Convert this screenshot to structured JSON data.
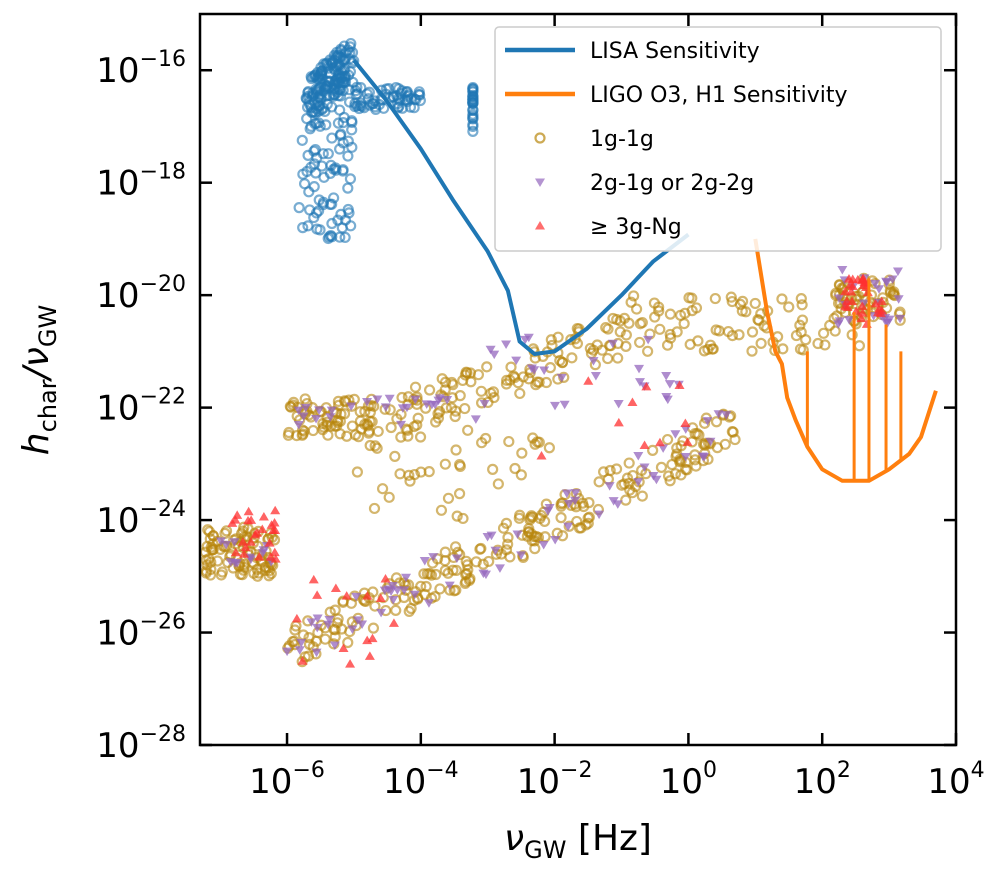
{
  "chart_data": {
    "type": "scatter",
    "log_x": true,
    "log_y": true,
    "xlim": [
      5e-08,
      10000
    ],
    "ylim": [
      1e-28,
      1e-15
    ],
    "x_tick_labels": [
      {
        "value": 1e-06,
        "base": "10",
        "exp": "−6"
      },
      {
        "value": 0.0001,
        "base": "10",
        "exp": "−4"
      },
      {
        "value": 0.01,
        "base": "10",
        "exp": "−2"
      },
      {
        "value": 1,
        "base": "10",
        "exp": "0"
      },
      {
        "value": 100,
        "base": "10",
        "exp": "2"
      },
      {
        "value": 10000,
        "base": "10",
        "exp": "4"
      }
    ],
    "y_tick_labels": [
      {
        "value": 1e-16,
        "base": "10",
        "exp": "−16"
      },
      {
        "value": 1e-18,
        "base": "10",
        "exp": "−18"
      },
      {
        "value": 1e-20,
        "base": "10",
        "exp": "−20"
      },
      {
        "value": 1e-22,
        "base": "10",
        "exp": "−22"
      },
      {
        "value": 1e-24,
        "base": "10",
        "exp": "−24"
      },
      {
        "value": 1e-26,
        "base": "10",
        "exp": "−26"
      },
      {
        "value": 1e-28,
        "base": "10",
        "exp": "−28"
      }
    ],
    "xlabel": {
      "main": "ν",
      "sub": "GW",
      "rest": " [Hz]"
    },
    "ylabel": {
      "main": "h",
      "sub1": "char",
      "mid": "/ν",
      "sub2": "GW"
    },
    "grid": false,
    "legend_position": "top-right",
    "legend": [
      {
        "label": "LISA Sensitivity",
        "kind": "line",
        "color": "#1f77b4"
      },
      {
        "label": "LIGO O3, H1 Sensitivity",
        "kind": "line",
        "color": "#ff7f0e"
      },
      {
        "label": "1g-1g",
        "kind": "circle",
        "color": "#b8860b"
      },
      {
        "label": "2g-1g or 2g-2g",
        "kind": "triangle-down",
        "color": "#9467bd"
      },
      {
        "label": "≥ 3g-Ng",
        "kind": "triangle-up",
        "color": "#ff3030"
      }
    ],
    "lines": [
      {
        "name": "LISA Sensitivity",
        "color": "#1f77b4",
        "x": [
          1e-05,
          3e-05,
          0.0001,
          0.0003,
          0.001,
          0.002,
          0.003,
          0.005,
          0.01,
          0.03,
          0.1,
          0.3,
          1
        ],
        "y": [
          1.5e-16,
          3e-17,
          4e-18,
          5e-19,
          6e-20,
          1.2e-20,
          1.5e-21,
          9e-22,
          1e-21,
          2.5e-21,
          1e-20,
          4e-20,
          1.2e-19
        ]
      },
      {
        "name": "LIGO O3, H1 Sensitivity",
        "color": "#ff7f0e",
        "x": [
          10,
          15,
          20,
          25,
          30,
          40,
          60,
          100,
          200,
          500,
          1000,
          2000,
          3000,
          5000
        ],
        "y": [
          1e-19,
          5e-21,
          1e-21,
          6e-22,
          1.5e-22,
          6e-23,
          2e-23,
          8e-24,
          5e-24,
          5e-24,
          8e-24,
          1.5e-23,
          3e-23,
          2e-22
        ],
        "spikes": [
          {
            "x": 60,
            "y_top": 1e-21
          },
          {
            "x": 300,
            "y_top": 5e-21
          },
          {
            "x": 500,
            "y_top": 2e-20
          },
          {
            "x": 900,
            "y_top": 3e-21
          },
          {
            "x": 1500,
            "y_top": 1e-21
          }
        ]
      }
    ],
    "scatter": [
      {
        "name": "LISA-band points",
        "color": "#1f77b4",
        "marker": "circle",
        "alpha": 0.6,
        "clusters": [
          {
            "x": [
              2e-06,
              1e-05
            ],
            "y": [
              3e-17,
              1.5e-16
            ],
            "n": 140,
            "mode": "diag"
          },
          {
            "x": [
              1e-05,
              0.0001
            ],
            "y": [
              2e-17,
              5e-17
            ],
            "n": 60,
            "mode": "box"
          },
          {
            "x": [
              1.5e-06,
              1e-05
            ],
            "y": [
              3e-18,
              5e-17
            ],
            "n": 40,
            "mode": "box"
          },
          {
            "x": [
              1.5e-06,
              1e-05
            ],
            "y": [
              1e-19,
              3e-18
            ],
            "n": 50,
            "mode": "box"
          },
          {
            "x": [
              0.0006,
              0.0006
            ],
            "y": [
              8e-18,
              5e-17
            ],
            "n": 25,
            "mode": "box"
          }
        ]
      },
      {
        "name": "1g-1g",
        "color": "#b8860b",
        "marker": "circle",
        "alpha": 0.6,
        "clusters": [
          {
            "x": [
              6e-08,
              7e-07
            ],
            "y": [
              1e-25,
              8e-25
            ],
            "n": 90,
            "mode": "box"
          },
          {
            "x": [
              1e-06,
              2e-05
            ],
            "y": [
              3e-23,
              1.5e-22
            ],
            "n": 70,
            "mode": "box"
          },
          {
            "x": [
              1e-06,
              0.01
            ],
            "y": [
              5e-27,
              1e-24
            ],
            "n": 140,
            "mode": "diag"
          },
          {
            "x": [
              0.01,
              5
            ],
            "y": [
              1e-24,
              5e-23
            ],
            "n": 90,
            "mode": "diag"
          },
          {
            "x": [
              2e-05,
              0.1
            ],
            "y": [
              5e-23,
              2e-21
            ],
            "n": 110,
            "mode": "diag"
          },
          {
            "x": [
              0.1,
              500
            ],
            "y": [
              1e-21,
              1e-20
            ],
            "n": 90,
            "mode": "box"
          },
          {
            "x": [
              1e-05,
              0.01
            ],
            "y": [
              1e-24,
              5e-23
            ],
            "n": 40,
            "mode": "box"
          },
          {
            "x": [
              150,
              1500
            ],
            "y": [
              3e-21,
              2e-20
            ],
            "n": 50,
            "mode": "box"
          }
        ]
      },
      {
        "name": "2g-1g or 2g-2g",
        "color": "#9467bd",
        "marker": "triangle-down",
        "alpha": 0.75,
        "clusters": [
          {
            "x": [
              1e-07,
              7e-07
            ],
            "y": [
              1.5e-25,
              8e-25
            ],
            "n": 12,
            "mode": "box"
          },
          {
            "x": [
              1e-06,
              0.01
            ],
            "y": [
              5e-27,
              1e-24
            ],
            "n": 40,
            "mode": "diag"
          },
          {
            "x": [
              1e-06,
              0.001
            ],
            "y": [
              5e-23,
              1.5e-22
            ],
            "n": 25,
            "mode": "box"
          },
          {
            "x": [
              0.01,
              5
            ],
            "y": [
              1e-24,
              5e-23
            ],
            "n": 25,
            "mode": "diag"
          },
          {
            "x": [
              0.001,
              1
            ],
            "y": [
              1e-22,
              2e-21
            ],
            "n": 25,
            "mode": "box"
          },
          {
            "x": [
              150,
              1500
            ],
            "y": [
              3e-21,
              3e-20
            ],
            "n": 25,
            "mode": "box"
          }
        ]
      },
      {
        "name": "≥ 3g-Ng",
        "color": "#ff3030",
        "marker": "triangle-up",
        "alpha": 0.75,
        "clusters": [
          {
            "x": [
              1.5e-07,
              7e-07
            ],
            "y": [
              2e-25,
              1.5e-24
            ],
            "n": 25,
            "mode": "box"
          },
          {
            "x": [
              1e-06,
              5e-05
            ],
            "y": [
              2e-27,
              1e-25
            ],
            "n": 15,
            "mode": "box"
          },
          {
            "x": [
              200,
              800
            ],
            "y": [
              3e-21,
              2e-20
            ],
            "n": 30,
            "mode": "box"
          },
          {
            "x": [
              0.001,
              1
            ],
            "y": [
              5e-24,
              5e-22
            ],
            "n": 10,
            "mode": "box"
          }
        ]
      }
    ]
  }
}
